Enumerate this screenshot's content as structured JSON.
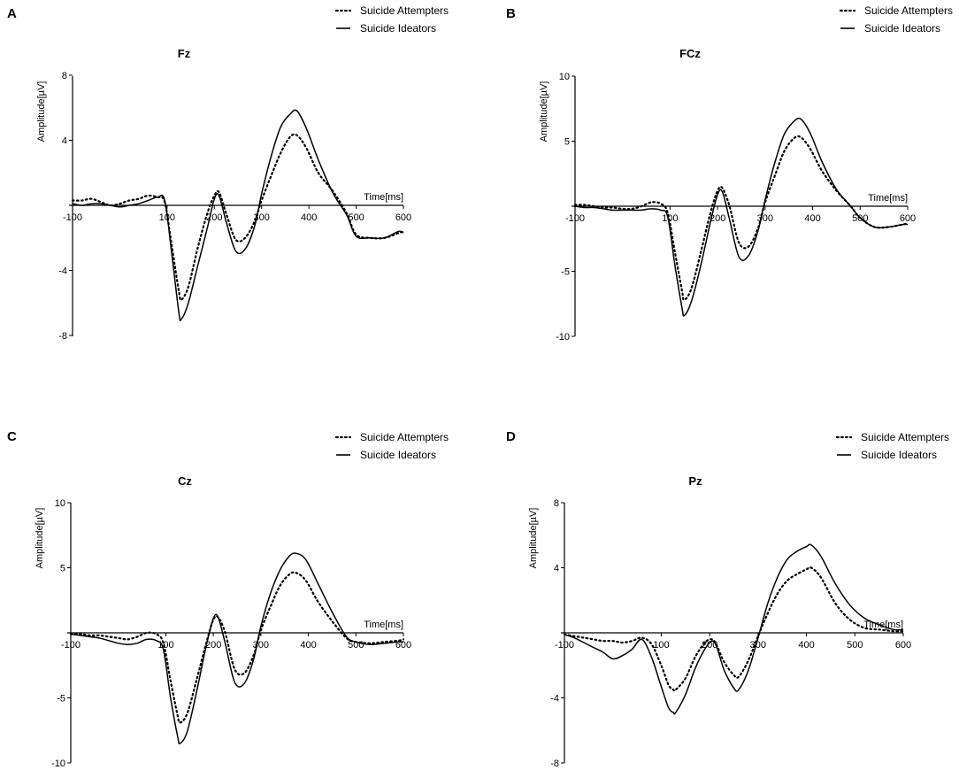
{
  "figure": {
    "panels": [
      "A",
      "B",
      "C",
      "D"
    ]
  },
  "chart_data": [
    {
      "type": "line",
      "panel": "A",
      "title": "Fz",
      "xlabel": "Time[ms]",
      "ylabel": "Amplitude[µV]",
      "xlim": [
        -100,
        600
      ],
      "ylim": [
        -8,
        8
      ],
      "xticks": [
        -100,
        100,
        200,
        300,
        400,
        500,
        600
      ],
      "xtick_labels": [
        "-100",
        "100",
        "200",
        "300",
        "400",
        "500",
        "600"
      ],
      "yticks": [
        8,
        4,
        -4,
        -8
      ],
      "ytick_labels": [
        "8",
        "4",
        "-4",
        "-8"
      ],
      "legend": {
        "position": "top-right"
      },
      "series": [
        {
          "name": "Suicide Attempters",
          "style": "dotted",
          "x": [
            -100,
            -80,
            -60,
            -40,
            -20,
            0,
            20,
            40,
            60,
            80,
            95,
            110,
            125,
            130,
            145,
            165,
            185,
            200,
            210,
            225,
            245,
            265,
            285,
            300,
            320,
            340,
            360,
            375,
            395,
            420,
            450,
            480,
            500,
            530,
            560,
            590,
            600
          ],
          "y": [
            0.3,
            0.3,
            0.4,
            0.2,
            0.0,
            0.1,
            0.3,
            0.4,
            0.6,
            0.5,
            0.2,
            -2.5,
            -5.3,
            -5.8,
            -5.0,
            -2.6,
            -0.5,
            0.6,
            0.8,
            -0.5,
            -2.1,
            -2.0,
            -1.0,
            0.3,
            1.8,
            3.2,
            4.2,
            4.3,
            3.5,
            2.0,
            0.9,
            -0.5,
            -1.8,
            -2.0,
            -2.0,
            -1.7,
            -1.6
          ]
        },
        {
          "name": "Suicide Ideators",
          "style": "solid",
          "x": [
            -100,
            -80,
            -60,
            -40,
            -20,
            0,
            20,
            40,
            60,
            80,
            95,
            110,
            125,
            130,
            145,
            165,
            185,
            200,
            210,
            225,
            245,
            265,
            285,
            300,
            320,
            340,
            360,
            375,
            395,
            420,
            450,
            480,
            500,
            530,
            560,
            590,
            600
          ],
          "y": [
            0.1,
            0.0,
            0.1,
            0.1,
            0.0,
            -0.1,
            0.0,
            0.1,
            0.3,
            0.5,
            0.3,
            -3.0,
            -6.6,
            -7.0,
            -6.0,
            -3.7,
            -1.4,
            0.4,
            0.6,
            -1.0,
            -2.8,
            -2.7,
            -1.3,
            0.7,
            3.0,
            4.8,
            5.6,
            5.8,
            4.7,
            2.8,
            0.8,
            -0.6,
            -1.9,
            -2.0,
            -2.0,
            -1.6,
            -1.7
          ]
        }
      ]
    },
    {
      "type": "line",
      "panel": "B",
      "title": "FCz",
      "xlabel": "Time[ms]",
      "ylabel": "Amplitude[µV]",
      "xlim": [
        -100,
        600
      ],
      "ylim": [
        -10,
        10
      ],
      "xticks": [
        -100,
        100,
        200,
        300,
        400,
        500,
        600
      ],
      "xtick_labels": [
        "-100",
        "100",
        "200",
        "300",
        "400",
        "500",
        "600"
      ],
      "yticks": [
        10,
        5,
        -5,
        -10
      ],
      "ytick_labels": [
        "10",
        "5",
        "-5",
        "-10"
      ],
      "legend": {
        "position": "top-right"
      },
      "series": [
        {
          "name": "Suicide Attempters",
          "style": "dotted",
          "x": [
            -100,
            -80,
            -60,
            -40,
            -20,
            0,
            20,
            40,
            60,
            80,
            95,
            110,
            125,
            130,
            145,
            165,
            185,
            200,
            210,
            225,
            245,
            265,
            285,
            300,
            320,
            340,
            360,
            375,
            395,
            420,
            450,
            480,
            500,
            530,
            560,
            590,
            600
          ],
          "y": [
            0.1,
            0.1,
            0.0,
            -0.1,
            -0.1,
            -0.2,
            -0.2,
            0.0,
            0.3,
            0.2,
            -0.5,
            -3.5,
            -6.5,
            -7.2,
            -6.3,
            -3.5,
            -0.5,
            1.2,
            1.4,
            0.0,
            -2.8,
            -3.1,
            -1.7,
            0.3,
            2.3,
            4.2,
            5.2,
            5.3,
            4.4,
            2.7,
            1.2,
            0.0,
            -0.9,
            -1.6,
            -1.6,
            -1.4,
            -1.3
          ]
        },
        {
          "name": "Suicide Ideators",
          "style": "solid",
          "x": [
            -100,
            -80,
            -60,
            -40,
            -20,
            0,
            20,
            40,
            60,
            80,
            95,
            110,
            125,
            130,
            145,
            165,
            185,
            200,
            210,
            225,
            245,
            265,
            285,
            300,
            320,
            340,
            360,
            375,
            395,
            420,
            450,
            480,
            500,
            530,
            560,
            590,
            600
          ],
          "y": [
            0.0,
            -0.1,
            -0.1,
            -0.2,
            -0.3,
            -0.3,
            -0.3,
            -0.3,
            -0.2,
            -0.3,
            -0.8,
            -4.5,
            -7.8,
            -8.4,
            -7.3,
            -4.5,
            -1.2,
            0.9,
            1.1,
            -1.0,
            -3.9,
            -3.8,
            -1.9,
            0.5,
            3.3,
            5.5,
            6.5,
            6.7,
            5.6,
            3.4,
            1.3,
            0.0,
            -0.9,
            -1.6,
            -1.6,
            -1.4,
            -1.4
          ]
        }
      ]
    },
    {
      "type": "line",
      "panel": "C",
      "title": "Cz",
      "xlabel": "Time[ms]",
      "ylabel": "Amplitude[µV]",
      "xlim": [
        -100,
        600
      ],
      "ylim": [
        -10,
        10
      ],
      "xticks": [
        -100,
        100,
        200,
        300,
        400,
        500,
        600
      ],
      "xtick_labels": [
        "-100",
        "100",
        "200",
        "300",
        "400",
        "500",
        "600"
      ],
      "yticks": [
        10,
        5,
        -5,
        -10
      ],
      "ytick_labels": [
        "10",
        "5",
        "-5",
        "-10"
      ],
      "legend": {
        "position": "top-right"
      },
      "series": [
        {
          "name": "Suicide Attempters",
          "style": "dotted",
          "x": [
            -100,
            -80,
            -60,
            -40,
            -20,
            0,
            20,
            40,
            60,
            80,
            95,
            110,
            125,
            130,
            145,
            165,
            185,
            200,
            210,
            225,
            245,
            265,
            285,
            300,
            320,
            340,
            360,
            375,
            395,
            420,
            450,
            480,
            500,
            530,
            560,
            590,
            600
          ],
          "y": [
            -0.1,
            -0.1,
            -0.2,
            -0.2,
            -0.3,
            -0.4,
            -0.5,
            -0.3,
            0.0,
            -0.1,
            -0.8,
            -3.7,
            -6.4,
            -6.9,
            -6.2,
            -3.6,
            -0.8,
            1.0,
            1.2,
            0.0,
            -2.8,
            -3.1,
            -1.7,
            0.2,
            2.0,
            3.6,
            4.5,
            4.6,
            4.0,
            2.4,
            0.9,
            -0.4,
            -0.7,
            -0.8,
            -0.7,
            -0.6,
            -0.5
          ]
        },
        {
          "name": "Suicide Ideators",
          "style": "solid",
          "x": [
            -100,
            -80,
            -60,
            -40,
            -20,
            0,
            20,
            40,
            60,
            80,
            95,
            110,
            125,
            130,
            145,
            165,
            185,
            200,
            210,
            225,
            245,
            265,
            285,
            300,
            320,
            340,
            360,
            375,
            395,
            420,
            450,
            480,
            500,
            530,
            560,
            590,
            600
          ],
          "y": [
            -0.1,
            -0.2,
            -0.3,
            -0.4,
            -0.6,
            -0.8,
            -0.9,
            -0.8,
            -0.5,
            -0.6,
            -1.3,
            -5.0,
            -8.0,
            -8.5,
            -7.6,
            -4.5,
            -1.0,
            1.1,
            1.2,
            -0.8,
            -3.8,
            -3.9,
            -2.0,
            0.5,
            3.0,
            4.8,
            5.9,
            6.1,
            5.6,
            3.8,
            1.6,
            -0.3,
            -0.7,
            -0.9,
            -0.8,
            -0.7,
            -0.7
          ]
        }
      ]
    },
    {
      "type": "line",
      "panel": "D",
      "title": "Pz",
      "xlabel": "Time[ms]",
      "ylabel": "Amplitude[µV]",
      "xlim": [
        -100,
        600
      ],
      "ylim": [
        -8,
        8
      ],
      "xticks": [
        -100,
        100,
        200,
        300,
        400,
        500,
        600
      ],
      "xtick_labels": [
        "-100",
        "100",
        "200",
        "300",
        "400",
        "500",
        "600"
      ],
      "yticks": [
        8,
        4,
        -4,
        -8
      ],
      "ytick_labels": [
        "8",
        "4",
        "-4",
        "-8"
      ],
      "legend": {
        "position": "top-right"
      },
      "series": [
        {
          "name": "Suicide Attempters",
          "style": "dotted",
          "x": [
            -100,
            -80,
            -60,
            -40,
            -20,
            0,
            20,
            40,
            60,
            80,
            100,
            115,
            125,
            130,
            150,
            170,
            190,
            205,
            215,
            230,
            250,
            260,
            280,
            300,
            320,
            340,
            360,
            380,
            400,
            410,
            430,
            460,
            490,
            520,
            550,
            580,
            600
          ],
          "y": [
            -0.1,
            -0.2,
            -0.3,
            -0.4,
            -0.5,
            -0.5,
            -0.6,
            -0.5,
            -0.3,
            -0.7,
            -2.0,
            -3.2,
            -3.5,
            -3.5,
            -2.8,
            -1.5,
            -0.6,
            -0.4,
            -0.8,
            -1.8,
            -2.6,
            -2.7,
            -1.7,
            -0.2,
            1.2,
            2.4,
            3.2,
            3.6,
            3.9,
            4.0,
            3.4,
            1.8,
            0.8,
            0.3,
            0.2,
            0.1,
            0.1
          ]
        },
        {
          "name": "Suicide Ideators",
          "style": "solid",
          "x": [
            -100,
            -80,
            -60,
            -40,
            -20,
            0,
            20,
            40,
            60,
            80,
            100,
            115,
            125,
            130,
            150,
            170,
            190,
            205,
            215,
            230,
            250,
            260,
            280,
            300,
            320,
            340,
            360,
            380,
            400,
            410,
            430,
            460,
            490,
            520,
            550,
            580,
            600
          ],
          "y": [
            -0.1,
            -0.3,
            -0.6,
            -0.9,
            -1.2,
            -1.6,
            -1.4,
            -1.0,
            -0.4,
            -1.5,
            -3.3,
            -4.6,
            -4.9,
            -4.9,
            -3.8,
            -2.2,
            -1.0,
            -0.5,
            -0.9,
            -2.3,
            -3.4,
            -3.5,
            -2.3,
            -0.3,
            1.8,
            3.4,
            4.5,
            5.0,
            5.3,
            5.4,
            4.7,
            3.0,
            1.7,
            0.9,
            0.5,
            0.2,
            0.2
          ]
        }
      ]
    }
  ]
}
